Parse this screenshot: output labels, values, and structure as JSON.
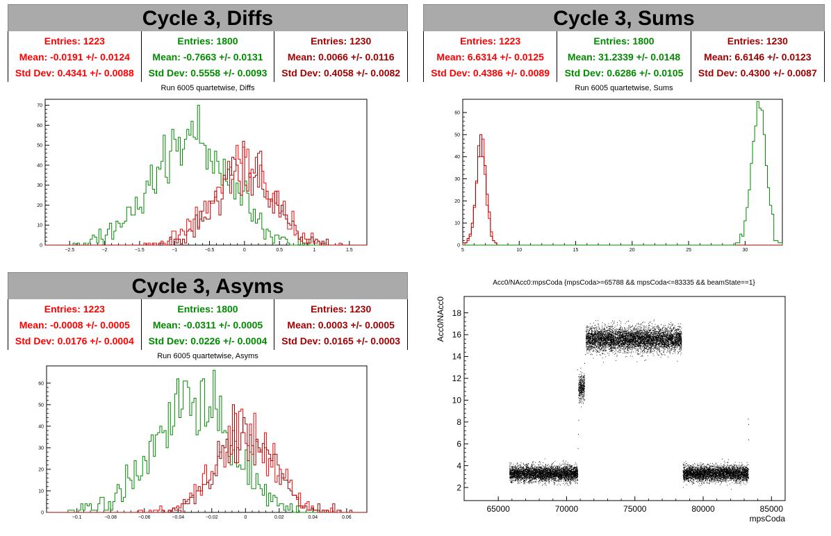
{
  "colors": {
    "red": "#ff0000",
    "green": "#008a00",
    "darkred": "#a00000",
    "black": "#000000"
  },
  "panels": {
    "diffs": {
      "title": "Cycle 3, Diffs",
      "subtitle": "Run 6005 quartetwise, Diffs",
      "stats": [
        {
          "entries": "Entries: 1223",
          "mean": "Mean: -0.0191 +/- 0.0124",
          "std": "Std Dev: 0.4341 +/- 0.0088",
          "color": "#ff0000"
        },
        {
          "entries": "Entries: 1800",
          "mean": "Mean: -0.7663 +/- 0.0131",
          "std": "Std Dev: 0.5558 +/- 0.0093",
          "color": "#008a00"
        },
        {
          "entries": "Entries: 1230",
          "mean": "Mean: 0.0066 +/- 0.0116",
          "std": "Std Dev: 0.4058 +/- 0.0082",
          "color": "#a00000"
        }
      ]
    },
    "sums": {
      "title": "Cycle 3, Sums",
      "subtitle": "Run 6005 quartetwise, Sums",
      "stats": [
        {
          "entries": "Entries: 1223",
          "mean": "Mean: 6.6314 +/- 0.0125",
          "std": "Std Dev: 0.4386 +/- 0.0089",
          "color": "#ff0000"
        },
        {
          "entries": "Entries: 1800",
          "mean": "Mean: 31.2339 +/- 0.0148",
          "std": "Std Dev: 0.6286 +/- 0.0105",
          "color": "#008a00"
        },
        {
          "entries": "Entries: 1230",
          "mean": "Mean: 6.6146 +/- 0.0123",
          "std": "Std Dev: 0.4300 +/- 0.0087",
          "color": "#a00000"
        }
      ]
    },
    "asyms": {
      "title": "Cycle 3, Asyms",
      "subtitle": "Run 6005 quartetwise, Asyms",
      "stats": [
        {
          "entries": "Entries: 1223",
          "mean": "Mean: -0.0008 +/- 0.0005",
          "std": "Std Dev: 0.0176 +/- 0.0004",
          "color": "#ff0000"
        },
        {
          "entries": "Entries: 1800",
          "mean": "Mean: -0.0311 +/- 0.0005",
          "std": "Std Dev: 0.0226 +/- 0.0004",
          "color": "#008a00"
        },
        {
          "entries": "Entries: 1230",
          "mean": "Mean: 0.0003 +/- 0.0005",
          "std": "Std Dev: 0.0165 +/- 0.0003",
          "color": "#a00000"
        }
      ]
    },
    "scatter": {
      "title": "Acc0/NAcc0:mpsCoda {mpsCoda>=65788 && mpsCoda<=83335 && beamState==1}"
    }
  },
  "chart_data": [
    {
      "type": "histogram",
      "title": "Run 6005 quartetwise, Diffs",
      "xlim": [
        -2.85,
        1.75
      ],
      "ylim": [
        0,
        73
      ],
      "xticks": [
        -2.5,
        -2,
        -1.5,
        -1,
        -0.5,
        0,
        0.5,
        1,
        1.5
      ],
      "yticks": [
        0,
        10,
        20,
        30,
        40,
        50,
        60,
        70
      ],
      "series": [
        {
          "color": "#008a00",
          "entries": 1800,
          "mean": -0.7663,
          "std": 0.5558,
          "peak": 70
        },
        {
          "color": "#ff0000",
          "entries": 1223,
          "mean": -0.0191,
          "std": 0.4341,
          "peak": 50
        },
        {
          "color": "#a00000",
          "entries": 1230,
          "mean": 0.0066,
          "std": 0.4058,
          "peak": 52
        }
      ]
    },
    {
      "type": "histogram",
      "title": "Run 6005 quartetwise, Sums",
      "xlim": [
        5,
        33.3
      ],
      "ylim": [
        0,
        66
      ],
      "xticks": [
        5,
        10,
        15,
        20,
        25,
        30
      ],
      "yticks": [
        0,
        10,
        20,
        30,
        40,
        50,
        60
      ],
      "series": [
        {
          "color": "#ff0000",
          "entries": 1223,
          "mean": 6.6314,
          "std": 0.4386,
          "peak": 48
        },
        {
          "color": "#a00000",
          "entries": 1230,
          "mean": 6.6146,
          "std": 0.43,
          "peak": 50
        },
        {
          "color": "#008a00",
          "entries": 1800,
          "mean": 31.2339,
          "std": 0.6286,
          "peak": 65
        }
      ]
    },
    {
      "type": "histogram",
      "title": "Run 6005 quartetwise, Asyms",
      "xlim": [
        -0.118,
        0.072
      ],
      "ylim": [
        0,
        68
      ],
      "xticks": [
        -0.1,
        -0.08,
        -0.06,
        -0.04,
        -0.02,
        0,
        0.02,
        0.04,
        0.06
      ],
      "yticks": [
        0,
        10,
        20,
        30,
        40,
        50,
        60
      ],
      "series": [
        {
          "color": "#008a00",
          "entries": 1800,
          "mean": -0.0311,
          "std": 0.0226,
          "peak": 66
        },
        {
          "color": "#ff0000",
          "entries": 1223,
          "mean": -0.0008,
          "std": 0.0176,
          "peak": 48
        },
        {
          "color": "#a00000",
          "entries": 1230,
          "mean": 0.0003,
          "std": 0.0165,
          "peak": 50
        }
      ]
    },
    {
      "type": "scatter",
      "title": "Acc0/NAcc0:mpsCoda {mpsCoda>=65788 && mpsCoda<=83335 && beamState==1}",
      "xlabel": "mpsCoda",
      "ylabel": "Acc0/NAcc0",
      "xlim": [
        62500,
        86000
      ],
      "ylim": [
        0.8,
        19.5
      ],
      "xticks": [
        65000,
        70000,
        75000,
        80000,
        85000
      ],
      "yticks": [
        2,
        4,
        6,
        8,
        10,
        12,
        14,
        16,
        18
      ],
      "clusters": [
        {
          "x": [
            65800,
            70800
          ],
          "y_mean": 3.3,
          "y_std": 0.35
        },
        {
          "x": [
            70850,
            71300
          ],
          "y_mean": 11.2,
          "y_std": 0.6
        },
        {
          "x": [
            71400,
            78400
          ],
          "y_mean": 15.6,
          "y_std": 0.55
        },
        {
          "x": [
            78500,
            83300
          ],
          "y_mean": 3.3,
          "y_std": 0.35
        }
      ]
    }
  ]
}
